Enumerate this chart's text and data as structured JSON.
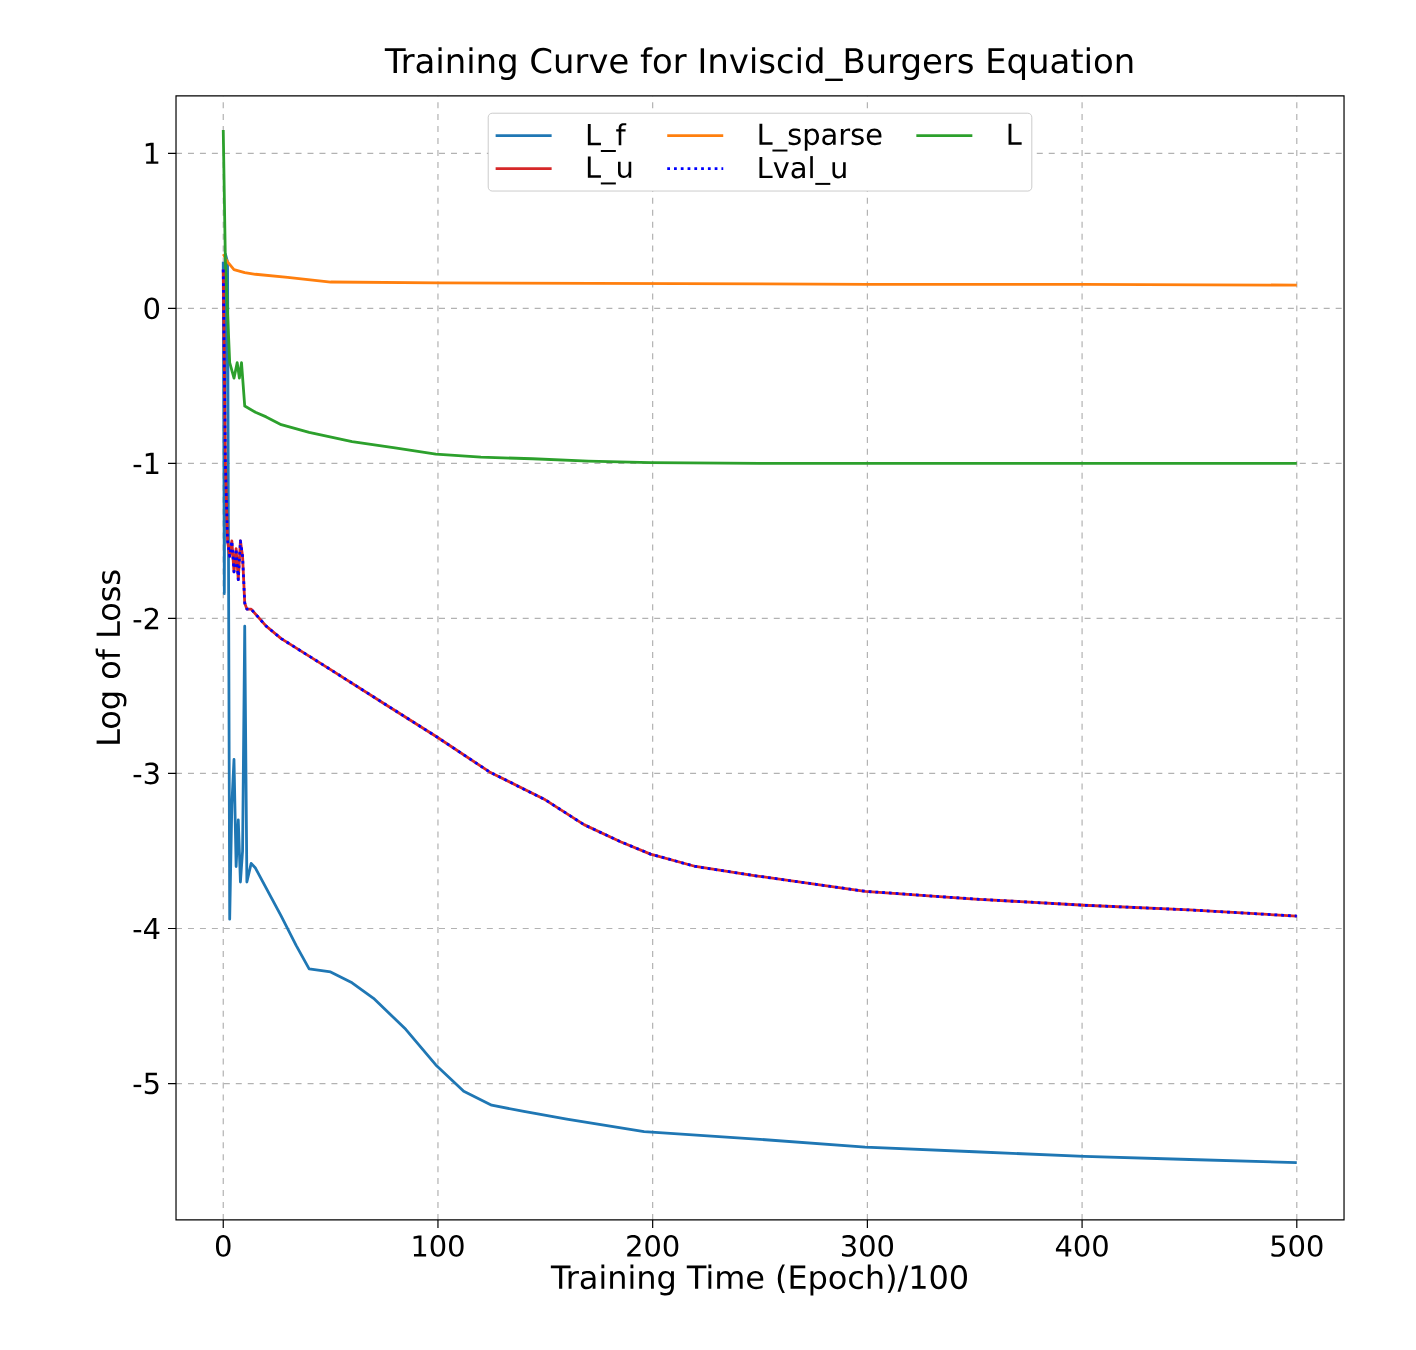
{
  "chart_data": {
    "type": "line",
    "title": "Training Curve for Inviscid_Burgers Equation",
    "xlabel": "Training Time (Epoch)/100",
    "ylabel": "Log of Loss",
    "xlim": [
      -22,
      522
    ],
    "ylim": [
      -5.88,
      1.37
    ],
    "xticks": [
      0,
      100,
      200,
      300,
      400,
      500
    ],
    "yticks": [
      -5,
      -4,
      -3,
      -2,
      -1,
      0,
      1
    ],
    "grid": true,
    "legend": "top",
    "line_style": "solid",
    "series": [
      {
        "name": "L_f",
        "color": "#1f77b4",
        "x": [
          0,
          0.5,
          1,
          2,
          3,
          4,
          5,
          6,
          7,
          8,
          9,
          10,
          11,
          13,
          15,
          27,
          34,
          40,
          50,
          60,
          70,
          85,
          99,
          112,
          125,
          140,
          160,
          196,
          250,
          299,
          350,
          401,
          450,
          500
        ],
        "values": [
          0.3,
          -1.84,
          0.35,
          0.3,
          -3.94,
          -3.2,
          -2.91,
          -3.6,
          -3.3,
          -3.7,
          -3.5,
          -2.05,
          -3.7,
          -3.58,
          -3.61,
          -3.92,
          -4.11,
          -4.26,
          -4.28,
          -4.35,
          -4.45,
          -4.65,
          -4.88,
          -5.05,
          -5.14,
          -5.18,
          -5.23,
          -5.31,
          -5.36,
          -5.41,
          -5.44,
          -5.47,
          -5.49,
          -5.51
        ]
      },
      {
        "name": "L_sparse",
        "color": "#ff7f0e",
        "x": [
          0,
          2,
          5,
          10,
          15,
          30,
          50,
          100,
          200,
          300,
          400,
          500
        ],
        "values": [
          0.35,
          0.3,
          0.25,
          0.23,
          0.22,
          0.2,
          0.17,
          0.165,
          0.16,
          0.155,
          0.155,
          0.15
        ]
      },
      {
        "name": "L",
        "color": "#2ca02c",
        "x": [
          0,
          1,
          3,
          5,
          6.5,
          7.5,
          8.5,
          10,
          15,
          20,
          27,
          40,
          60,
          80,
          99,
          120,
          144,
          170,
          199,
          250,
          300,
          400,
          500
        ],
        "values": [
          1.15,
          0.3,
          -0.35,
          -0.45,
          -0.35,
          -0.45,
          -0.35,
          -0.63,
          -0.67,
          -0.7,
          -0.75,
          -0.8,
          -0.86,
          -0.9,
          -0.94,
          -0.96,
          -0.97,
          -0.985,
          -0.995,
          -1.0,
          -1.0,
          -1.0,
          -1.0
        ]
      },
      {
        "name": "L_u",
        "color": "#d62728",
        "x": [
          0,
          1,
          2,
          3,
          4,
          5,
          6,
          7,
          8,
          9,
          10,
          11,
          13,
          20,
          27,
          50,
          75,
          99,
          124,
          150,
          168,
          185,
          199,
          220,
          248,
          299,
          350,
          401,
          450,
          500
        ],
        "values": [
          0.25,
          -1.0,
          -1.5,
          -1.6,
          -1.5,
          -1.7,
          -1.55,
          -1.75,
          -1.5,
          -1.6,
          -1.9,
          -1.94,
          -1.94,
          -2.05,
          -2.13,
          -2.33,
          -2.55,
          -2.76,
          -2.99,
          -3.17,
          -3.33,
          -3.44,
          -3.52,
          -3.6,
          -3.66,
          -3.76,
          -3.81,
          -3.85,
          -3.88,
          -3.92
        ]
      },
      {
        "name": "Lval_u",
        "color": "#0000ff",
        "line_style": "dotted",
        "x": [
          0,
          1,
          2,
          3,
          4,
          5,
          6,
          7,
          8,
          9,
          10,
          11,
          13,
          20,
          27,
          50,
          75,
          99,
          124,
          150,
          168,
          185,
          199,
          220,
          248,
          299,
          350,
          401,
          450,
          500
        ],
        "values": [
          0.25,
          -1.0,
          -1.5,
          -1.6,
          -1.5,
          -1.7,
          -1.55,
          -1.75,
          -1.5,
          -1.6,
          -1.9,
          -1.94,
          -1.94,
          -2.05,
          -2.13,
          -2.33,
          -2.55,
          -2.76,
          -2.99,
          -3.17,
          -3.33,
          -3.44,
          -3.52,
          -3.6,
          -3.66,
          -3.76,
          -3.81,
          -3.85,
          -3.88,
          -3.92
        ]
      }
    ]
  }
}
